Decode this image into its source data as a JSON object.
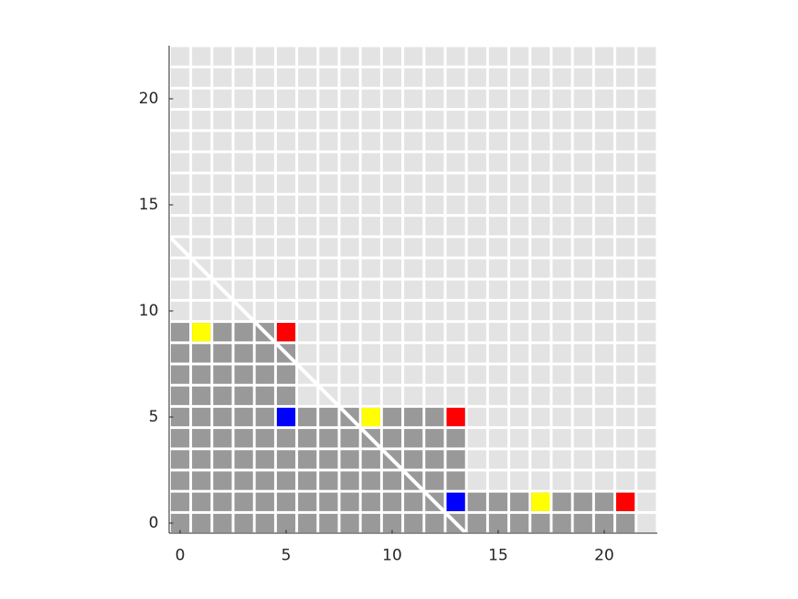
{
  "chart_data": {
    "type": "cell-grid",
    "xlim": [
      -0.5,
      22.5
    ],
    "ylim": [
      -0.5,
      22.5
    ],
    "xticks": [
      0,
      5,
      10,
      15,
      20
    ],
    "yticks": [
      0,
      5,
      10,
      15,
      20
    ],
    "background_color": "#e3e3e3",
    "fill_color": "#999999",
    "rows": [
      0,
      1,
      2,
      3,
      4,
      5,
      6,
      7,
      8,
      9
    ],
    "row_extent": [
      21,
      21,
      13,
      13,
      13,
      13,
      5,
      5,
      5,
      5
    ],
    "markers": [
      {
        "color": "#ff0000",
        "x": [
          5,
          13,
          21
        ],
        "y": [
          9,
          5,
          1
        ]
      },
      {
        "color": "#ffff00",
        "x": [
          1,
          9,
          17
        ],
        "y": [
          9,
          5,
          1
        ]
      },
      {
        "color": "#0000ff",
        "x": [
          5,
          13
        ],
        "y": [
          5,
          1
        ]
      }
    ],
    "diagonal": {
      "color": "#ffffff",
      "x": [
        -0.5,
        13.5
      ],
      "y": [
        13.5,
        -0.5
      ]
    }
  }
}
